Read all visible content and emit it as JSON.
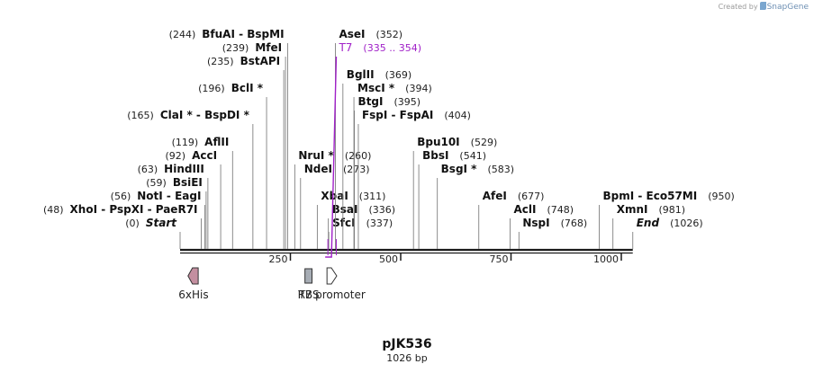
{
  "credit": {
    "prefix": "Created by",
    "brand": "SnapGene"
  },
  "sequence": {
    "name": "pJK536",
    "length_label": "1026 bp",
    "length": 1026
  },
  "colors": {
    "feature_line": "#a020c8",
    "his": "#c48fa0",
    "rbs": "#a7adb5",
    "promoter": "#ffffff",
    "leader": "#808080"
  },
  "axis": {
    "ticks": [
      250,
      500,
      750,
      1000
    ]
  },
  "enzymes": [
    {
      "name": "Start",
      "pos": 0,
      "label": "(0)",
      "style": "italic",
      "row": 0
    },
    {
      "name": "XhoI - PspXI - PaeR7I",
      "pos": 48,
      "label": "(48)",
      "row": 1
    },
    {
      "name": "NotI - EagI",
      "pos": 56,
      "label": "(56)",
      "row": 2
    },
    {
      "name": "BsiEI",
      "pos": 59,
      "label": "(59)",
      "row": 3
    },
    {
      "name": "HindIII",
      "pos": 63,
      "label": "(63)",
      "row": 4
    },
    {
      "name": "AccI",
      "pos": 92,
      "label": "(92)",
      "row": 5
    },
    {
      "name": "AflII",
      "pos": 119,
      "label": "(119)",
      "row": 6
    },
    {
      "name": "ClaI * - BspDI *",
      "pos": 165,
      "label": "(165)",
      "row": 8
    },
    {
      "name": "BclI *",
      "pos": 196,
      "label": "(196)",
      "row": 10
    },
    {
      "name": "BstAPI",
      "pos": 235,
      "label": "(235)",
      "row": 12
    },
    {
      "name": "MfeI",
      "pos": 239,
      "label": "(239)",
      "row": 13
    },
    {
      "name": "BfuAI - BspMI",
      "pos": 244,
      "label": "(244)",
      "row": 14
    },
    {
      "name": "NruI *",
      "pos": 260,
      "label": "(260)",
      "row": 5
    },
    {
      "name": "NdeI",
      "pos": 273,
      "label": "(273)",
      "row": 4
    },
    {
      "name": "XbaI",
      "pos": 311,
      "label": "(311)",
      "row": 2
    },
    {
      "name": "BsaI",
      "pos": 336,
      "label": "(336)",
      "row": 1
    },
    {
      "name": "SfcI",
      "pos": 337,
      "label": "(337)",
      "row": 0
    },
    {
      "name": "AseI",
      "pos": 352,
      "label": "(352)",
      "row": 14
    },
    {
      "name": "BglII",
      "pos": 369,
      "label": "(369)",
      "row": 11
    },
    {
      "name": "MscI *",
      "pos": 394,
      "label": "(394)",
      "row": 10
    },
    {
      "name": "BtgI",
      "pos": 395,
      "label": "(395)",
      "row": 9
    },
    {
      "name": "FspI - FspAI",
      "pos": 404,
      "label": "(404)",
      "row": 8
    },
    {
      "name": "Bpu10I",
      "pos": 529,
      "label": "(529)",
      "row": 6
    },
    {
      "name": "BbsI",
      "pos": 541,
      "label": "(541)",
      "row": 5
    },
    {
      "name": "BsgI *",
      "pos": 583,
      "label": "(583)",
      "row": 4
    },
    {
      "name": "AfeI",
      "pos": 677,
      "label": "(677)",
      "row": 2
    },
    {
      "name": "AclI",
      "pos": 748,
      "label": "(748)",
      "row": 1
    },
    {
      "name": "NspI",
      "pos": 768,
      "label": "(768)",
      "row": 0
    },
    {
      "name": "BpmI - Eco57MI",
      "pos": 950,
      "label": "(950)",
      "row": 2
    },
    {
      "name": "XmnI",
      "pos": 981,
      "label": "(981)",
      "row": 1
    },
    {
      "name": "End",
      "pos": 1026,
      "label": "(1026)",
      "style": "italic",
      "row": 0
    }
  ],
  "features": [
    {
      "name": "T7",
      "range_label": "(335 .. 354)",
      "start": 335,
      "end": 354,
      "kind": "line",
      "row": 13
    },
    {
      "name": "6xHis",
      "start": 22,
      "end": 39,
      "kind": "arrow-left",
      "color": "his"
    },
    {
      "name": "RBS",
      "start": 283,
      "end": 299,
      "kind": "box",
      "color": "rbs"
    },
    {
      "name": "T7 promoter",
      "start": 335,
      "end": 353,
      "kind": "arrow-right",
      "color": "promoter"
    }
  ]
}
